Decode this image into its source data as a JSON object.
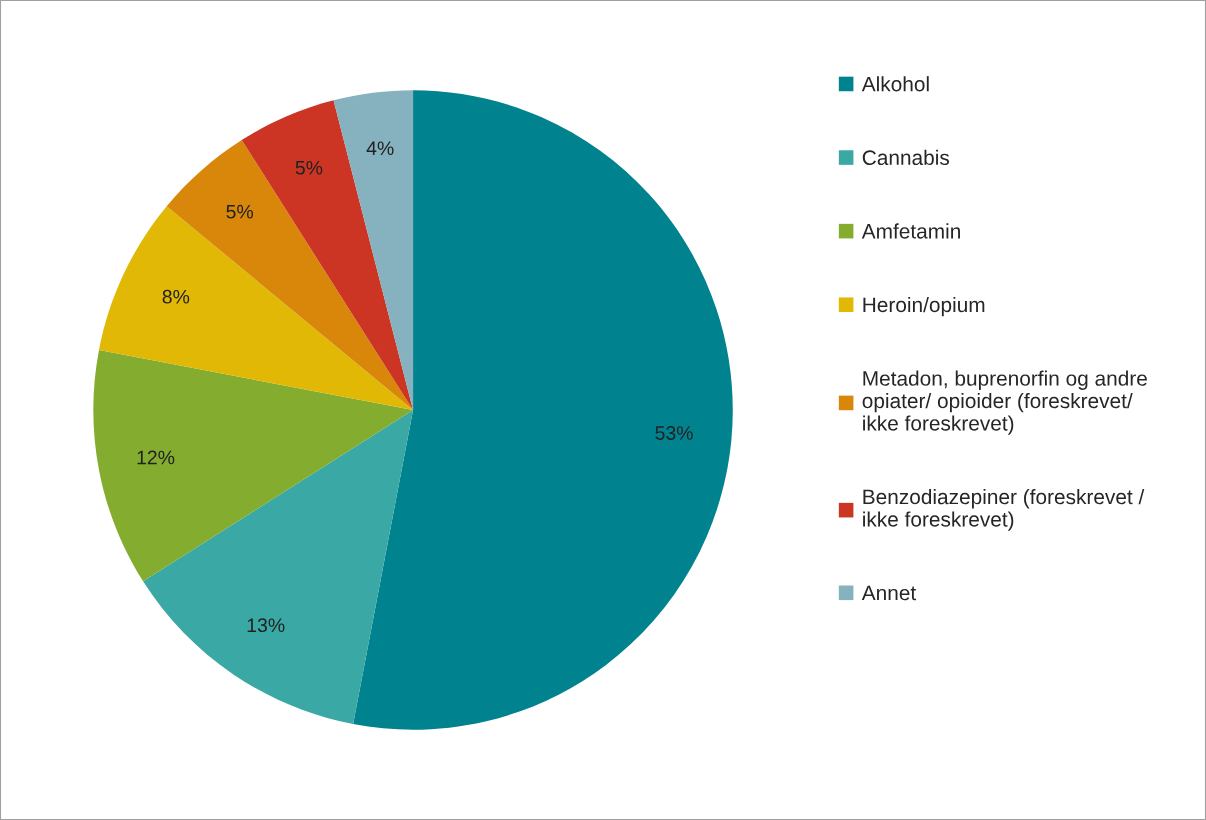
{
  "chart_data": {
    "type": "pie",
    "categories": [
      "Alkohol",
      "Cannabis",
      "Amfetamin",
      "Heroin/opium",
      "Metadon, buprenorfin og andre\nopiater/ opioider (foreskrevet/\nikke foreskrevet)",
      "Benzodiazepiner (foreskrevet /\nikke foreskrevet)",
      "Annet"
    ],
    "values": [
      53,
      13,
      12,
      8,
      5,
      5,
      4
    ],
    "value_labels": [
      "53%",
      "13%",
      "12%",
      "8%",
      "5%",
      "5%",
      "4%"
    ],
    "colors": [
      "#00828f",
      "#3aa8a4",
      "#84ad2f",
      "#e0b805",
      "#d8870a",
      "#cc3524",
      "#86b1bf"
    ],
    "legend": "right"
  }
}
